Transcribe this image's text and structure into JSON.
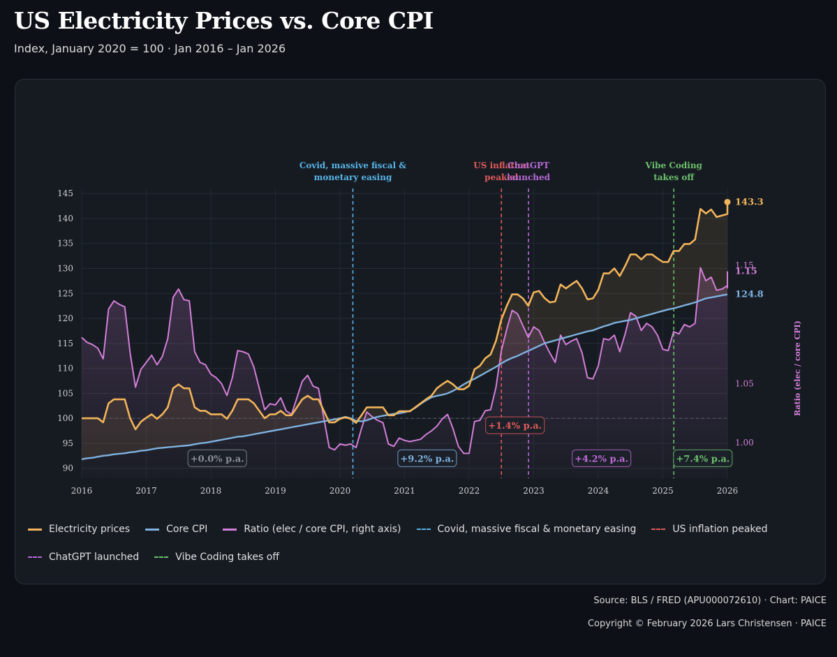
{
  "header": {
    "title": "US Electricity Prices vs. Core CPI",
    "subtitle": "Index, January 2020 = 100 · Jan 2016 – Jan 2026"
  },
  "footer": {
    "source": "Source: BLS / FRED (APU000072610) · Chart: PAICE",
    "copyright": "Copyright © February 2026 Lars Christensen · PAICE"
  },
  "colors": {
    "electricity": "#f2b45a",
    "core_cpi": "#7fb2e0",
    "ratio": "#d47fd9",
    "covid": "#58b4e8",
    "inflation": "#e05a5a",
    "chatgpt": "#b66ad6",
    "vibe": "#6cc06c"
  },
  "legend": [
    {
      "key": "electricity",
      "label": "Electricity prices",
      "style": "solid"
    },
    {
      "key": "core_cpi",
      "label": "Core CPI",
      "style": "solid"
    },
    {
      "key": "ratio",
      "label": "Ratio (elec / core CPI, right axis)",
      "style": "solid"
    },
    {
      "key": "covid",
      "label": "Covid, massive fiscal & monetary easing",
      "style": "dashed"
    },
    {
      "key": "inflation",
      "label": "US inflation peaked",
      "style": "dashed"
    },
    {
      "key": "chatgpt",
      "label": "ChatGPT launched",
      "style": "dashed"
    },
    {
      "key": "vibe",
      "label": "Vibe Coding takes off",
      "style": "dashed"
    }
  ],
  "chart_data": {
    "type": "line",
    "title": "US Electricity Prices vs. Core CPI",
    "x_start": 2016.0,
    "x_step": 0.08333,
    "xlim": [
      2016,
      2026
    ],
    "x_ticks": [
      "2016",
      "2017",
      "2018",
      "2019",
      "2020",
      "2021",
      "2022",
      "2023",
      "2024",
      "2025",
      "2026"
    ],
    "ylim": [
      88,
      146
    ],
    "y_ticks": [
      90,
      95,
      100,
      105,
      110,
      115,
      120,
      125,
      130,
      135,
      140,
      145
    ],
    "y2lim": [
      0.97,
      1.215
    ],
    "y2_ticks": [
      1.0,
      1.05,
      1.15
    ],
    "y2_tick_labels": [
      "1.00",
      "1.05",
      "1.15"
    ],
    "y2label": "Ratio (elec / core CPI)",
    "reference_y": 100,
    "series": [
      {
        "name": "Electricity prices",
        "key": "electricity",
        "axis": "left",
        "values": [
          100,
          100,
          100,
          100,
          99.2,
          103,
          103.8,
          103.8,
          103.8,
          100,
          97.8,
          99.3,
          100.1,
          100.8,
          99.9,
          100.8,
          102.2,
          106,
          106.8,
          106,
          106,
          102.2,
          101.5,
          101.5,
          100.8,
          100.8,
          100.8,
          99.9,
          101.5,
          103.8,
          103.8,
          103.8,
          103,
          101.5,
          100,
          100.8,
          100.8,
          101.5,
          100.6,
          100.6,
          102.2,
          103.8,
          104.5,
          103.8,
          103.8,
          101.5,
          99.2,
          99.2,
          99.9,
          100.2,
          99.9,
          99.1,
          100.6,
          102.2,
          102.2,
          102.2,
          102.2,
          100.6,
          100.6,
          101.4,
          101.4,
          101.4,
          102.2,
          103,
          103.8,
          104.5,
          106,
          106.8,
          107.5,
          106.8,
          105.8,
          105.8,
          106.5,
          109.8,
          110.5,
          112,
          112.8,
          115.5,
          119.8,
          122.5,
          124.8,
          124.8,
          124,
          122.5,
          125.2,
          125.5,
          124.1,
          123.2,
          123.4,
          126.8,
          126,
          126.8,
          127.5,
          126,
          123.8,
          124,
          125.7,
          129,
          129,
          130,
          128.5,
          130.5,
          132.8,
          132.8,
          131.8,
          132.8,
          132.8,
          132,
          131.3,
          131.3,
          133.5,
          133.5,
          134.9,
          134.9,
          135.8,
          141.9,
          141,
          141.8,
          140.3,
          140.6,
          140.9,
          141,
          143.3
        ]
      },
      {
        "name": "Core CPI",
        "key": "core_cpi",
        "axis": "left",
        "values": [
          91.8,
          92,
          92.1,
          92.3,
          92.5,
          92.6,
          92.8,
          92.9,
          93,
          93.2,
          93.3,
          93.5,
          93.6,
          93.8,
          94,
          94.1,
          94.2,
          94.3,
          94.4,
          94.5,
          94.6,
          94.8,
          95,
          95.1,
          95.3,
          95.5,
          95.7,
          95.9,
          96.1,
          96.3,
          96.4,
          96.6,
          96.8,
          97,
          97.2,
          97.4,
          97.6,
          97.8,
          98,
          98.2,
          98.4,
          98.6,
          98.8,
          99,
          99.2,
          99.4,
          99.6,
          99.8,
          100,
          100.3,
          100,
          99.5,
          99.4,
          99.6,
          100,
          100.3,
          100.5,
          100.7,
          100.9,
          101,
          101.2,
          101.5,
          102.1,
          102.9,
          103.6,
          104.2,
          104.5,
          104.7,
          105,
          105.5,
          106.1,
          106.8,
          107.4,
          107.9,
          108.5,
          109.1,
          109.7,
          110.3,
          111,
          111.6,
          112.1,
          112.5,
          113,
          113.5,
          114,
          114.5,
          115,
          115.3,
          115.6,
          115.9,
          116.2,
          116.5,
          116.8,
          117.1,
          117.4,
          117.6,
          118,
          118.4,
          118.7,
          119.1,
          119.3,
          119.5,
          119.7,
          120,
          120.3,
          120.6,
          120.9,
          121.2,
          121.5,
          121.8,
          122,
          122.3,
          122.6,
          122.9,
          123.2,
          123.6,
          124,
          124.2,
          124.4,
          124.6,
          124.8
        ]
      },
      {
        "name": "Ratio (elec / core CPI, right axis)",
        "key": "ratio",
        "axis": "right",
        "values": [
          1.089,
          1.085,
          1.083,
          1.08,
          1.071,
          1.113,
          1.12,
          1.117,
          1.115,
          1.076,
          1.047,
          1.062,
          1.068,
          1.074,
          1.066,
          1.073,
          1.088,
          1.123,
          1.13,
          1.121,
          1.12,
          1.077,
          1.068,
          1.066,
          1.058,
          1.055,
          1.05,
          1.04,
          1.055,
          1.078,
          1.077,
          1.075,
          1.064,
          1.046,
          1.028,
          1.033,
          1.032,
          1.038,
          1.027,
          1.024,
          1.038,
          1.052,
          1.057,
          1.048,
          1.046,
          1.021,
          0.996,
          0.994,
          0.999,
          0.998,
          0.999,
          0.996,
          1.012,
          1.026,
          1.022,
          1.019,
          1.017,
          0.999,
          0.997,
          1.004,
          1.002,
          1.001,
          1.002,
          1.003,
          1.007,
          1.01,
          1.014,
          1.02,
          1.024,
          1.012,
          0.997,
          0.991,
          0.991,
          1.018,
          1.019,
          1.027,
          1.028,
          1.047,
          1.078,
          1.096,
          1.112,
          1.109,
          1.099,
          1.089,
          1.098,
          1.095,
          1.085,
          1.076,
          1.068,
          1.091,
          1.083,
          1.086,
          1.088,
          1.076,
          1.055,
          1.054,
          1.065,
          1.088,
          1.087,
          1.091,
          1.077,
          1.092,
          1.11,
          1.107,
          1.095,
          1.101,
          1.098,
          1.091,
          1.079,
          1.078,
          1.094,
          1.092,
          1.1,
          1.098,
          1.101,
          1.148,
          1.137,
          1.14,
          1.129,
          1.13,
          1.133,
          1.131,
          1.145
        ]
      }
    ],
    "events": [
      {
        "key": "covid",
        "x": 2020.2,
        "label_lines": [
          "Covid, massive fiscal &",
          "monetary easing"
        ]
      },
      {
        "key": "inflation",
        "x": 2022.5,
        "label_lines": [
          "US inflation",
          "peaked"
        ]
      },
      {
        "key": "chatgpt",
        "x": 2022.92,
        "label_lines": [
          "ChatGPT",
          "launched"
        ]
      },
      {
        "key": "vibe",
        "x": 2025.17,
        "label_lines": [
          "Vibe Coding",
          "takes off"
        ]
      }
    ],
    "period_badges": [
      {
        "text": "+0.0% p.a.",
        "x": 2018.1,
        "y": 92,
        "color": "#8a8f96"
      },
      {
        "text": "+9.2% p.a.",
        "x": 2021.35,
        "y": 92,
        "color": "#7fb2e0"
      },
      {
        "text": "+1.4% p.a.",
        "x": 2022.71,
        "y": 98.6,
        "color": "#e05a5a"
      },
      {
        "text": "+4.2% p.a.",
        "x": 2024.05,
        "y": 92,
        "color": "#c06ad6"
      },
      {
        "text": "+7.4% p.a.",
        "x": 2025.62,
        "y": 92,
        "color": "#6cc06c"
      }
    ],
    "end_labels": {
      "electricity": "143.3",
      "core_cpi": "124.8",
      "ratio": "1.15"
    }
  }
}
